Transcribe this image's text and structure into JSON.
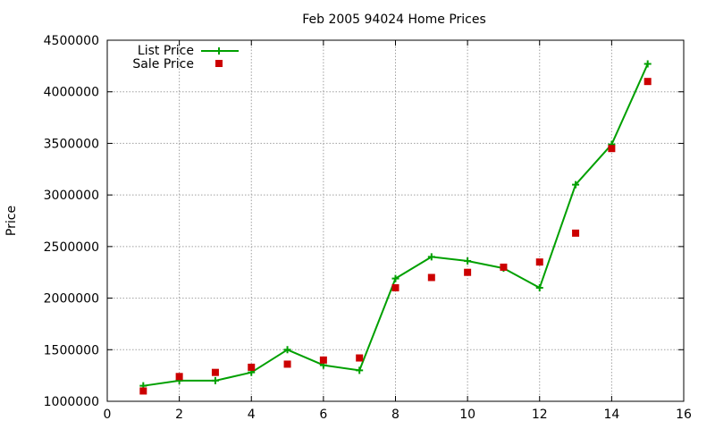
{
  "chart_data": {
    "type": "line",
    "title": "Feb 2005 94024 Home Prices",
    "xlabel": "",
    "ylabel": "Price",
    "xlim": [
      0,
      16
    ],
    "ylim": [
      1000000,
      4500000
    ],
    "x_ticks": [
      "0",
      "2",
      "4",
      "6",
      "8",
      "10",
      "12",
      "14",
      "16"
    ],
    "y_ticks": [
      "1000000",
      "1500000",
      "2000000",
      "2500000",
      "3000000",
      "3500000",
      "4000000",
      "4500000"
    ],
    "grid": true,
    "legend_position": "top-left",
    "x": [
      1,
      2,
      3,
      4,
      5,
      6,
      7,
      8,
      9,
      10,
      11,
      12,
      13,
      14,
      15
    ],
    "series": [
      {
        "name": "List Price",
        "style": "lines+points",
        "marker": "plus",
        "color": "#00a000",
        "values": [
          1150000,
          1200000,
          1200000,
          1280000,
          1500000,
          1350000,
          1300000,
          2190000,
          2400000,
          2360000,
          2290000,
          2100000,
          3100000,
          3490000,
          4270000
        ]
      },
      {
        "name": "Sale Price",
        "style": "points",
        "marker": "square",
        "color": "#cc0000",
        "values": [
          1100000,
          1240000,
          1280000,
          1330000,
          1360000,
          1400000,
          1420000,
          2100000,
          2200000,
          2250000,
          2300000,
          2350000,
          2630000,
          3450000,
          4100000
        ]
      }
    ]
  }
}
